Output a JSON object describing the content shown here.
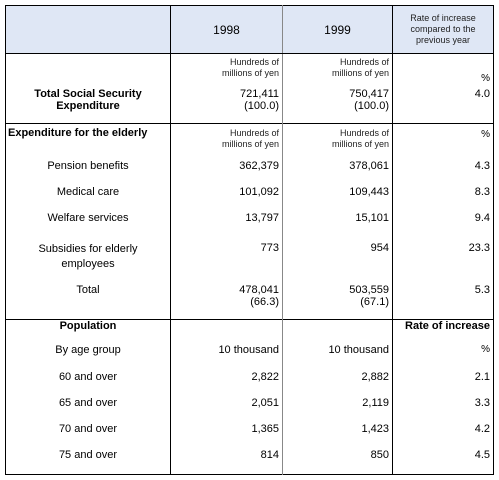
{
  "header": {
    "col1": "",
    "y1998": "1998",
    "y1999": "1999",
    "rate": "Rate of increase compared to the previous year"
  },
  "units_row": {
    "y1998_line1": "Hundreds of",
    "y1998_line2": "millions of yen",
    "y1999_line1": "Hundreds of",
    "y1999_line2": "millions of yen",
    "rate": "%"
  },
  "total_ss": {
    "label": "Total Social Security Expenditure",
    "v1998": "721,411",
    "p1998": "(100.0)",
    "v1999": "750,417",
    "p1999": "(100.0)",
    "rate": "4.0"
  },
  "elderly_section": {
    "label": "Expenditure for the elderly",
    "unit1998_line1": "Hundreds of",
    "unit1998_line2": "millions of yen",
    "unit1999_line1": "Hundreds of",
    "unit1999_line2": "millions of yen",
    "rate_unit": "%"
  },
  "elderly_rows": [
    {
      "label": "Pension benefits",
      "v1998": "362,379",
      "v1999": "378,061",
      "rate": "4.3"
    },
    {
      "label": "Medical care",
      "v1998": "101,092",
      "v1999": "109,443",
      "rate": "8.3"
    },
    {
      "label": "Welfare services",
      "v1998": "13,797",
      "v1999": "15,101",
      "rate": "9.4"
    },
    {
      "label": "Subsidies for elderly employees",
      "v1998": "773",
      "v1999": "954",
      "rate": "23.3"
    }
  ],
  "elderly_total": {
    "label": "Total",
    "v1998": "478,041",
    "p1998": "(66.3)",
    "v1999": "503,559",
    "p1999": "(67.1)",
    "rate": "5.3"
  },
  "population": {
    "label": "Population",
    "rate_label": "Rate of increase",
    "by_age_label": "By age group",
    "unit1998": "10 thousand",
    "unit1999": "10 thousand",
    "rate_unit": "%",
    "rows": [
      {
        "label": "60 and over",
        "v1998": "2,822",
        "v1999": "2,882",
        "rate": "2.1"
      },
      {
        "label": "65 and over",
        "v1998": "2,051",
        "v1999": "2,119",
        "rate": "3.3"
      },
      {
        "label": "70 and over",
        "v1998": "1,365",
        "v1999": "1,423",
        "rate": "4.2"
      },
      {
        "label": "75 and over",
        "v1998": "814",
        "v1999": "850",
        "rate": "4.5"
      }
    ]
  }
}
